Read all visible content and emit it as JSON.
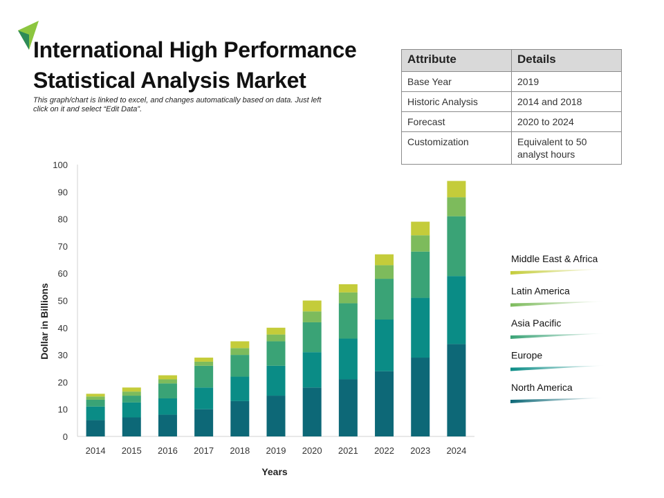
{
  "title": "International High Performance Statistical Analysis Market",
  "subtitle": "This graph/chart is linked to excel, and changes automatically based on data. Just left click on it and select “Edit Data”.",
  "logo_icon": "green-triangle-logo-icon",
  "attribute_table": {
    "headers": [
      "Attribute",
      "Details"
    ],
    "rows": [
      [
        "Base Year",
        "2019"
      ],
      [
        "Historic Analysis",
        "2014 and 2018"
      ],
      [
        "Forecast",
        "2020 to 2024"
      ],
      [
        "Customization",
        "Equivalent to 50 analyst hours"
      ]
    ]
  },
  "chart_data": {
    "type": "bar",
    "stacked": true,
    "categories": [
      "2014",
      "2015",
      "2016",
      "2017",
      "2018",
      "2019",
      "2020",
      "2021",
      "2022",
      "2023",
      "2024"
    ],
    "xlabel": "Years",
    "ylabel": "Dollar in Billions",
    "ylim": [
      0,
      100
    ],
    "yticks": [
      0,
      10,
      20,
      30,
      40,
      50,
      60,
      70,
      80,
      90,
      100
    ],
    "grid": false,
    "legend_position": "right",
    "series": [
      {
        "name": "North America",
        "color": "#0d6877",
        "values": [
          6,
          7,
          8,
          10,
          13,
          15,
          18,
          21,
          24,
          29,
          34
        ]
      },
      {
        "name": "Europe",
        "color": "#0a8c86",
        "values": [
          5,
          5.5,
          6,
          8,
          9,
          11,
          13,
          15,
          19,
          22,
          25
        ]
      },
      {
        "name": "Asia Pacific",
        "color": "#3aa376",
        "values": [
          2.5,
          2.5,
          5.5,
          8,
          8,
          9,
          11,
          13,
          15,
          17,
          22
        ]
      },
      {
        "name": "Latin America",
        "color": "#7dbb5c",
        "values": [
          1.2,
          1.5,
          1.5,
          1.5,
          2.5,
          2.5,
          4,
          4,
          5,
          6,
          7
        ]
      },
      {
        "name": "Middle East & Africa",
        "color": "#c4cc3a",
        "values": [
          1,
          1.5,
          1.5,
          1.5,
          2.5,
          2.5,
          4,
          3,
          4,
          5,
          6
        ]
      }
    ]
  }
}
